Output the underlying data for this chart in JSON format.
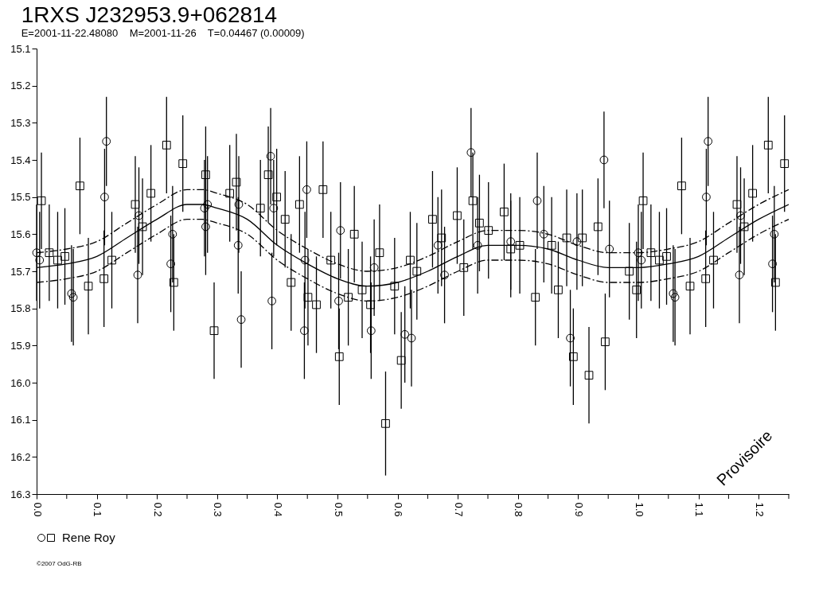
{
  "chart_data": {
    "type": "scatter",
    "title": "1RXS J232953.9+062814",
    "subtitle": "E=2001-11-22.48080    M=2001-11-26    T=0.04467 (0.00009)",
    "annotations": [
      "Provisoire",
      "©2007 OdG-RB"
    ],
    "xlim": [
      0,
      1.25
    ],
    "xticks": [
      {
        "value": 0,
        "label": "0.0"
      },
      {
        "value": 0.05,
        "label": null
      },
      0.1,
      {
        "value": 0.15,
        "label": null
      },
      0.2,
      {
        "value": 0.25,
        "label": null
      },
      0.3,
      {
        "value": 0.35,
        "label": null
      },
      0.4,
      {
        "value": 0.45,
        "label": null
      },
      0.5,
      {
        "value": 0.55,
        "label": null
      },
      0.6,
      {
        "value": 0.65,
        "label": null
      },
      0.7,
      {
        "value": 0.75,
        "label": null
      },
      0.8,
      {
        "value": 0.85,
        "label": null
      },
      0.9,
      {
        "value": 0.95,
        "label": null
      },
      {
        "value": 1,
        "label": "1.0"
      },
      {
        "value": 1.05,
        "label": null
      },
      1.1,
      {
        "value": 1.15,
        "label": null
      },
      1.2,
      {
        "value": 1.25,
        "label": null
      }
    ],
    "ylim": [
      16.3,
      15.1
    ],
    "yticks": [
      15.1,
      15.2,
      15.3,
      15.4,
      15.5,
      15.6,
      15.7,
      15.8,
      15.9,
      {
        "value": 16,
        "label": "16.0"
      },
      16.1,
      16.2,
      16.3
    ],
    "legend": "bottom left",
    "series": [
      {
        "name": "Rene Roy",
        "marker": "circle",
        "color": "#000000",
        "x": [
          0.0,
          0.005,
          0.058,
          0.061,
          0.113,
          0.116,
          0.168,
          0.17,
          0.223,
          0.226,
          0.279,
          0.281,
          0.284,
          0.335,
          0.336,
          0.34,
          0.389,
          0.391,
          0.394,
          0.445,
          0.446,
          0.449,
          0.502,
          0.505,
          0.556,
          0.561,
          0.612,
          0.623,
          0.667,
          0.678,
          0.722,
          0.733,
          0.788,
          0.832,
          0.843,
          0.887,
          0.898,
          0.943,
          0.952,
          1.0,
          1.005,
          1.058,
          1.061,
          1.113,
          1.116,
          1.168,
          1.17,
          1.223,
          1.226
        ],
        "values": [
          15.65,
          15.67,
          15.76,
          15.77,
          15.5,
          15.35,
          15.71,
          15.55,
          15.68,
          15.6,
          15.53,
          15.58,
          15.52,
          15.63,
          15.52,
          15.83,
          15.39,
          15.78,
          15.53,
          15.86,
          15.67,
          15.48,
          15.78,
          15.59,
          15.86,
          15.69,
          15.87,
          15.88,
          15.63,
          15.71,
          15.38,
          15.63,
          15.62,
          15.51,
          15.6,
          15.88,
          15.62,
          15.4,
          15.64,
          15.65,
          15.67,
          15.76,
          15.77,
          15.5,
          15.35,
          15.71,
          15.55,
          15.68,
          15.6
        ],
        "errors": [
          0.13,
          0.13,
          0.13,
          0.13,
          0.13,
          0.12,
          0.13,
          0.13,
          0.13,
          0.13,
          0.13,
          0.13,
          0.13,
          0.13,
          0.13,
          0.13,
          0.13,
          0.13,
          0.13,
          0.13,
          0.13,
          0.13,
          0.13,
          0.13,
          0.13,
          0.13,
          0.13,
          0.13,
          0.13,
          0.13,
          0.12,
          0.13,
          0.13,
          0.13,
          0.13,
          0.13,
          0.13,
          0.13,
          0.13,
          0.13,
          0.13,
          0.13,
          0.13,
          0.13,
          0.12,
          0.13,
          0.13,
          0.13,
          0.13
        ]
      },
      {
        "marker": "square",
        "color": "#000000",
        "x": [
          0.008,
          0.021,
          0.035,
          0.047,
          0.072,
          0.086,
          0.112,
          0.125,
          0.164,
          0.176,
          0.19,
          0.216,
          0.228,
          0.243,
          0.281,
          0.295,
          0.321,
          0.332,
          0.372,
          0.385,
          0.399,
          0.413,
          0.423,
          0.437,
          0.451,
          0.465,
          0.476,
          0.489,
          0.503,
          0.518,
          0.528,
          0.541,
          0.555,
          0.57,
          0.58,
          0.595,
          0.606,
          0.621,
          0.632,
          0.658,
          0.673,
          0.699,
          0.71,
          0.725,
          0.736,
          0.751,
          0.777,
          0.788,
          0.803,
          0.829,
          0.856,
          0.867,
          0.881,
          0.892,
          0.907,
          0.918,
          0.933,
          0.945,
          0.985,
          0.997,
          1.008,
          1.021,
          1.035,
          1.047,
          1.072,
          1.086,
          1.112,
          1.125,
          1.164,
          1.176,
          1.19,
          1.216,
          1.228,
          1.243
        ],
        "values": [
          15.51,
          15.65,
          15.67,
          15.66,
          15.47,
          15.74,
          15.72,
          15.67,
          15.52,
          15.58,
          15.49,
          15.36,
          15.73,
          15.41,
          15.44,
          15.86,
          15.49,
          15.46,
          15.53,
          15.44,
          15.5,
          15.56,
          15.73,
          15.52,
          15.77,
          15.79,
          15.48,
          15.67,
          15.93,
          15.77,
          15.6,
          15.75,
          15.79,
          15.65,
          16.11,
          15.74,
          15.94,
          15.67,
          15.7,
          15.56,
          15.61,
          15.55,
          15.69,
          15.51,
          15.57,
          15.59,
          15.54,
          15.64,
          15.63,
          15.77,
          15.63,
          15.75,
          15.61,
          15.93,
          15.61,
          15.98,
          15.58,
          15.89,
          15.7,
          15.75,
          15.51,
          15.65,
          15.67,
          15.66,
          15.47,
          15.74,
          15.72,
          15.67,
          15.52,
          15.58,
          15.49,
          15.36,
          15.73,
          15.41
        ],
        "errors": [
          0.13,
          0.13,
          0.13,
          0.13,
          0.13,
          0.13,
          0.13,
          0.13,
          0.13,
          0.13,
          0.13,
          0.13,
          0.13,
          0.13,
          0.13,
          0.13,
          0.13,
          0.13,
          0.13,
          0.13,
          0.13,
          0.13,
          0.13,
          0.13,
          0.13,
          0.13,
          0.13,
          0.13,
          0.13,
          0.13,
          0.13,
          0.13,
          0.13,
          0.13,
          0.14,
          0.13,
          0.13,
          0.13,
          0.13,
          0.13,
          0.13,
          0.13,
          0.13,
          0.13,
          0.13,
          0.13,
          0.13,
          0.13,
          0.13,
          0.13,
          0.13,
          0.13,
          0.13,
          0.13,
          0.13,
          0.13,
          0.13,
          0.13,
          0.13,
          0.13,
          0.13,
          0.13,
          0.13,
          0.13,
          0.13,
          0.13,
          0.13,
          0.13,
          0.13,
          0.13,
          0.13,
          0.13,
          0.13,
          0.13
        ]
      },
      {
        "type": "line",
        "color": "#000000",
        "line_style": "solid",
        "x": [
          0,
          0.05,
          0.1,
          0.15,
          0.2,
          0.25,
          0.275,
          0.3,
          0.35,
          0.4,
          0.45,
          0.5,
          0.55,
          0.6,
          0.65,
          0.7,
          0.75,
          0.8,
          0.85,
          0.9,
          0.95,
          1.0,
          1.05,
          1.1,
          1.15,
          1.2,
          1.25
        ],
        "values": [
          15.69,
          15.68,
          15.66,
          15.61,
          15.56,
          15.52,
          15.52,
          15.53,
          15.56,
          15.63,
          15.68,
          15.72,
          15.74,
          15.73,
          15.7,
          15.66,
          15.63,
          15.63,
          15.64,
          15.67,
          15.69,
          15.69,
          15.68,
          15.66,
          15.61,
          15.56,
          15.52
        ]
      },
      {
        "type": "line",
        "color": "#000000",
        "line_style": "dashed",
        "x": [
          0,
          0.05,
          0.1,
          0.15,
          0.2,
          0.25,
          0.275,
          0.3,
          0.35,
          0.4,
          0.45,
          0.5,
          0.55,
          0.6,
          0.65,
          0.7,
          0.75,
          0.8,
          0.85,
          0.9,
          0.95,
          1.0,
          1.05,
          1.1,
          1.15,
          1.2,
          1.25
        ],
        "values": [
          15.65,
          15.64,
          15.62,
          15.57,
          15.52,
          15.48,
          15.48,
          15.49,
          15.52,
          15.59,
          15.64,
          15.68,
          15.7,
          15.69,
          15.66,
          15.62,
          15.59,
          15.59,
          15.6,
          15.63,
          15.65,
          15.65,
          15.64,
          15.62,
          15.57,
          15.52,
          15.48
        ]
      },
      {
        "type": "line",
        "color": "#000000",
        "line_style": "dashed",
        "x": [
          0,
          0.05,
          0.1,
          0.15,
          0.2,
          0.25,
          0.275,
          0.3,
          0.35,
          0.4,
          0.45,
          0.5,
          0.55,
          0.6,
          0.65,
          0.7,
          0.75,
          0.8,
          0.85,
          0.9,
          0.95,
          1.0,
          1.05,
          1.1,
          1.15,
          1.2,
          1.25
        ],
        "values": [
          15.73,
          15.72,
          15.7,
          15.65,
          15.6,
          15.56,
          15.56,
          15.57,
          15.6,
          15.67,
          15.72,
          15.76,
          15.78,
          15.77,
          15.74,
          15.7,
          15.67,
          15.67,
          15.68,
          15.71,
          15.73,
          15.73,
          15.72,
          15.7,
          15.65,
          15.6,
          15.56
        ]
      }
    ]
  }
}
